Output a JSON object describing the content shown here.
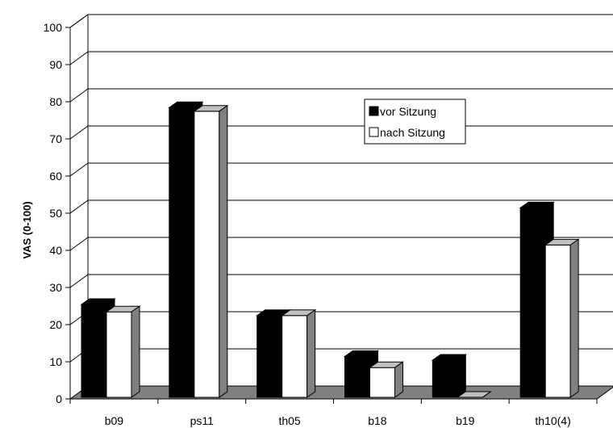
{
  "chart_data": {
    "type": "bar",
    "title": "",
    "xlabel": "",
    "ylabel": "VAS (0-100)",
    "ylim": [
      0,
      100
    ],
    "yticks": [
      0,
      10,
      20,
      30,
      40,
      50,
      60,
      70,
      80,
      90,
      100
    ],
    "grid": true,
    "legend": "inside-top-center",
    "categories": [
      "b09",
      "ps11",
      "th05",
      "b18",
      "b19",
      "th10(4)"
    ],
    "series": [
      {
        "name": "vor Sitzung",
        "color": "#000000",
        "values": [
          25,
          78,
          22,
          11,
          10,
          51
        ]
      },
      {
        "name": "nach Sitzung",
        "color": "#ffffff",
        "values": [
          23,
          77,
          22,
          8,
          0,
          41
        ]
      }
    ],
    "floor_color": "#808080",
    "side_color": "#808080",
    "top_color": "#c0c0c0"
  }
}
